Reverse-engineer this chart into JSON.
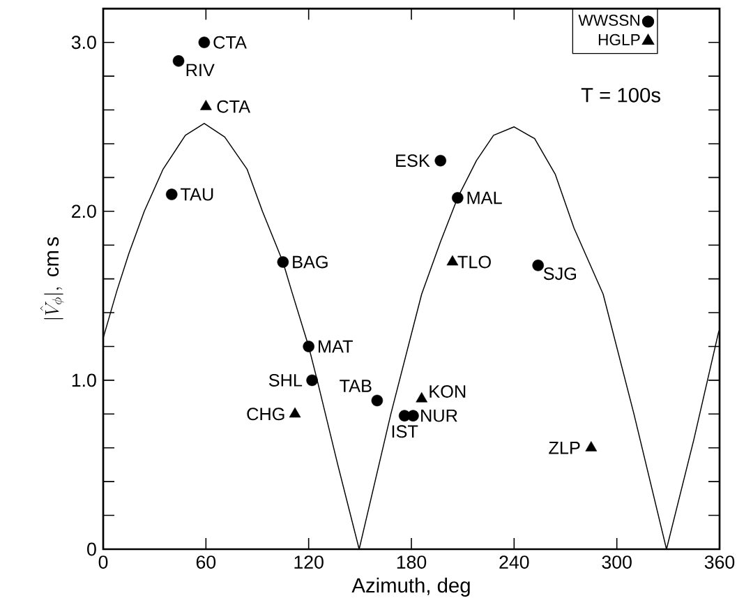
{
  "chart_data": {
    "type": "scatter",
    "xlabel": "Azimuth, deg",
    "ylabel": "|\\hat{V}_{\\phi}|,\\ \\mathrm{cm\\,s}",
    "xlim": [
      0,
      360
    ],
    "ylim": [
      0,
      3.2
    ],
    "xticks": [
      0,
      60,
      120,
      180,
      240,
      300,
      360
    ],
    "yticks": [
      {
        "value": 0,
        "label": "0"
      },
      {
        "value": 0.2,
        "label": null
      },
      {
        "value": 0.4,
        "label": null
      },
      {
        "value": 0.6,
        "label": null
      },
      {
        "value": 0.8,
        "label": null
      },
      {
        "value": 1.0,
        "label": "1.0"
      },
      {
        "value": 1.2,
        "label": null
      },
      {
        "value": 1.4,
        "label": null
      },
      {
        "value": 1.6,
        "label": null
      },
      {
        "value": 1.8,
        "label": null
      },
      {
        "value": 2.0,
        "label": "2.0"
      },
      {
        "value": 2.2,
        "label": null
      },
      {
        "value": 2.4,
        "label": null
      },
      {
        "value": 2.6,
        "label": null
      },
      {
        "value": 2.8,
        "label": null
      },
      {
        "value": 3.0,
        "label": "3.0"
      }
    ],
    "legend": "top right",
    "series": [
      {
        "type": "line",
        "color": "#000000",
        "marker": "none",
        "line_style": "solid",
        "x": [
          0,
          8,
          15,
          24,
          35,
          48,
          59,
          71,
          84,
          93,
          105,
          110,
          120,
          125,
          137,
          149.5,
          168,
          186,
          197,
          207,
          218,
          228,
          240,
          252,
          264,
          275,
          292,
          310,
          329,
          345,
          359.3,
          360
        ],
        "values": [
          1.25,
          1.53,
          1.75,
          2.0,
          2.25,
          2.45,
          2.52,
          2.44,
          2.25,
          2.0,
          1.7,
          1.53,
          1.2,
          1.0,
          0.5,
          0,
          0.8,
          1.51,
          1.82,
          2.08,
          2.3,
          2.45,
          2.5,
          2.43,
          2.22,
          1.9,
          1.51,
          0.8,
          0,
          0.65,
          1.28,
          1.3
        ]
      },
      {
        "name": "WWSSN",
        "color": "#000000",
        "marker": "circle",
        "x": [
          59,
          44,
          40,
          105,
          120,
          122,
          160,
          176,
          181,
          197,
          207,
          254
        ],
        "values": [
          3.0,
          2.89,
          2.1,
          1.7,
          1.2,
          1.0,
          0.88,
          0.79,
          0.79,
          2.3,
          2.08,
          1.68
        ]
      },
      {
        "name": "HGLP",
        "color": "#000000",
        "marker": "triangle",
        "x": [
          60,
          112,
          186,
          204,
          285
        ],
        "values": [
          2.62,
          0.8,
          0.89,
          1.7,
          0.6
        ]
      }
    ],
    "annotations": [
      {
        "text": "CTA",
        "x": 59,
        "y": 3.0
      },
      {
        "text": "RIV",
        "x": 44,
        "y": 2.89
      },
      {
        "text": "CTA",
        "x": 60,
        "y": 2.62
      },
      {
        "text": "TAU",
        "x": 40,
        "y": 2.1
      },
      {
        "text": "BAG",
        "x": 105,
        "y": 1.7
      },
      {
        "text": "MAT",
        "x": 120,
        "y": 1.2
      },
      {
        "text": "SHL",
        "x": 122,
        "y": 1.0
      },
      {
        "text": "CHG",
        "x": 112,
        "y": 0.8
      },
      {
        "text": "TAB",
        "x": 160,
        "y": 0.88
      },
      {
        "text": "IST",
        "x": 176,
        "y": 0.79
      },
      {
        "text": "NUR",
        "x": 181,
        "y": 0.79
      },
      {
        "text": "KON",
        "x": 186,
        "y": 0.89
      },
      {
        "text": "ESK",
        "x": 197,
        "y": 2.3
      },
      {
        "text": "MAL",
        "x": 207,
        "y": 2.08
      },
      {
        "text": "TLO",
        "x": 204,
        "y": 1.7
      },
      {
        "text": "SJG",
        "x": 254,
        "y": 1.68
      },
      {
        "text": "ZLP",
        "x": 285,
        "y": 0.6
      },
      "T = 100s"
    ]
  }
}
